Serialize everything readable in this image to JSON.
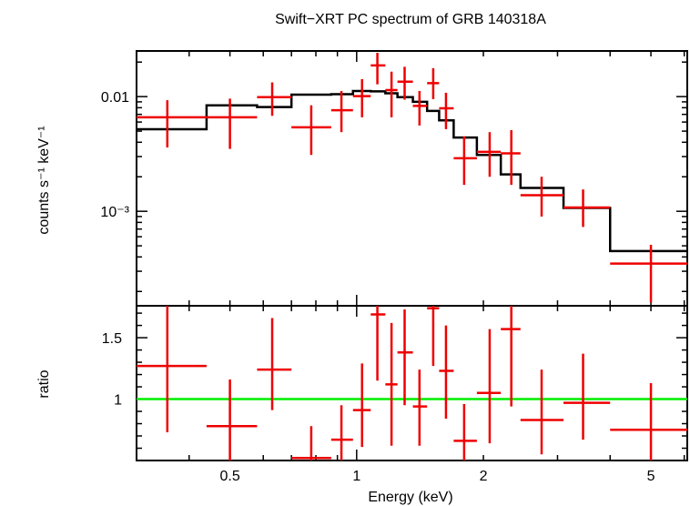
{
  "chart_data": [
    {
      "type": "scatter",
      "panel": "spectrum",
      "title": "Swift−XRT PC spectrum of GRB 140318A",
      "ylabel": "counts s⁻¹ keV⁻¹",
      "xlabel": "",
      "yscale": "log",
      "xscale": "log",
      "xlim": [
        0.3,
        6.1
      ],
      "ylim": [
        0.00015,
        0.025
      ],
      "yticks": [
        {
          "value": 0.01,
          "label": "0.01"
        },
        {
          "value": 0.001,
          "label": "10⁻³"
        }
      ],
      "data_color": "#ee0000",
      "model_color": "#000000",
      "series": [
        {
          "kind": "data",
          "points": [
            {
              "x": 0.355,
              "xlo": 0.3,
              "xhi": 0.44,
              "y": 0.0066,
              "ylo": 0.0036,
              "yhi": 0.0093
            },
            {
              "x": 0.5,
              "xlo": 0.44,
              "xhi": 0.58,
              "y": 0.0066,
              "ylo": 0.0035,
              "yhi": 0.0096
            },
            {
              "x": 0.63,
              "xlo": 0.58,
              "xhi": 0.7,
              "y": 0.0099,
              "ylo": 0.0068,
              "yhi": 0.0133
            },
            {
              "x": 0.78,
              "xlo": 0.7,
              "xhi": 0.87,
              "y": 0.0054,
              "ylo": 0.0031,
              "yhi": 0.0084
            },
            {
              "x": 0.92,
              "xlo": 0.87,
              "xhi": 0.98,
              "y": 0.0076,
              "ylo": 0.0049,
              "yhi": 0.0112
            },
            {
              "x": 1.03,
              "xlo": 0.98,
              "xhi": 1.08,
              "y": 0.0101,
              "ylo": 0.0066,
              "yhi": 0.0142
            },
            {
              "x": 1.12,
              "xlo": 1.08,
              "xhi": 1.17,
              "y": 0.0187,
              "ylo": 0.0128,
              "yhi": 0.0241
            },
            {
              "x": 1.21,
              "xlo": 1.17,
              "xhi": 1.25,
              "y": 0.0114,
              "ylo": 0.0066,
              "yhi": 0.0165
            },
            {
              "x": 1.3,
              "xlo": 1.25,
              "xhi": 1.36,
              "y": 0.0135,
              "ylo": 0.0094,
              "yhi": 0.0182
            },
            {
              "x": 1.41,
              "xlo": 1.36,
              "xhi": 1.47,
              "y": 0.0083,
              "ylo": 0.0056,
              "yhi": 0.0112
            },
            {
              "x": 1.52,
              "xlo": 1.47,
              "xhi": 1.57,
              "y": 0.0131,
              "ylo": 0.0095,
              "yhi": 0.0177
            },
            {
              "x": 1.63,
              "xlo": 1.57,
              "xhi": 1.7,
              "y": 0.0079,
              "ylo": 0.0052,
              "yhi": 0.0108
            },
            {
              "x": 1.8,
              "xlo": 1.7,
              "xhi": 1.93,
              "y": 0.0029,
              "ylo": 0.0017,
              "yhi": 0.0045
            },
            {
              "x": 2.07,
              "xlo": 1.93,
              "xhi": 2.2,
              "y": 0.0033,
              "ylo": 0.002,
              "yhi": 0.0049
            },
            {
              "x": 2.33,
              "xlo": 2.2,
              "xhi": 2.45,
              "y": 0.0032,
              "ylo": 0.0017,
              "yhi": 0.0051
            },
            {
              "x": 2.75,
              "xlo": 2.45,
              "xhi": 3.1,
              "y": 0.00138,
              "ylo": 0.0009,
              "yhi": 0.002
            },
            {
              "x": 3.45,
              "xlo": 3.1,
              "xhi": 4.0,
              "y": 0.00108,
              "ylo": 0.00073,
              "yhi": 0.00155
            },
            {
              "x": 5.0,
              "xlo": 4.0,
              "xhi": 6.1,
              "y": 0.00035,
              "ylo": 0.00016,
              "yhi": 0.00051
            }
          ]
        },
        {
          "kind": "model",
          "steps": [
            {
              "xlo": 0.3,
              "xhi": 0.44,
              "y": 0.0052
            },
            {
              "xlo": 0.44,
              "xhi": 0.58,
              "y": 0.0084
            },
            {
              "xlo": 0.58,
              "xhi": 0.7,
              "y": 0.0081
            },
            {
              "xlo": 0.7,
              "xhi": 0.87,
              "y": 0.0104
            },
            {
              "xlo": 0.87,
              "xhi": 0.98,
              "y": 0.0105
            },
            {
              "xlo": 0.98,
              "xhi": 1.08,
              "y": 0.0112
            },
            {
              "xlo": 1.08,
              "xhi": 1.17,
              "y": 0.0111
            },
            {
              "xlo": 1.17,
              "xhi": 1.25,
              "y": 0.0107
            },
            {
              "xlo": 1.25,
              "xhi": 1.36,
              "y": 0.0099
            },
            {
              "xlo": 1.36,
              "xhi": 1.47,
              "y": 0.009
            },
            {
              "xlo": 1.47,
              "xhi": 1.57,
              "y": 0.0075
            },
            {
              "xlo": 1.57,
              "xhi": 1.7,
              "y": 0.0062
            },
            {
              "xlo": 1.7,
              "xhi": 1.93,
              "y": 0.0044
            },
            {
              "xlo": 1.93,
              "xhi": 2.2,
              "y": 0.0031
            },
            {
              "xlo": 2.2,
              "xhi": 2.45,
              "y": 0.0021
            },
            {
              "xlo": 2.45,
              "xhi": 3.1,
              "y": 0.0016
            },
            {
              "xlo": 3.1,
              "xhi": 4.0,
              "y": 0.00107
            },
            {
              "xlo": 4.0,
              "xhi": 6.1,
              "y": 0.00045
            }
          ]
        }
      ]
    },
    {
      "type": "scatter",
      "panel": "ratio",
      "xlabel": "Energy (keV)",
      "ylabel": "ratio",
      "xscale": "log",
      "xlim": [
        0.3,
        6.1
      ],
      "ylim": [
        0.5,
        1.76
      ],
      "xticks": [
        {
          "value": 0.5,
          "label": "0.5"
        },
        {
          "value": 1,
          "label": "1"
        },
        {
          "value": 2,
          "label": "2"
        },
        {
          "value": 5,
          "label": "5"
        }
      ],
      "yticks": [
        {
          "value": 1,
          "label": "1"
        },
        {
          "value": 1.5,
          "label": "1.5"
        }
      ],
      "reference_line": {
        "y": 1,
        "color": "#00ee00"
      },
      "data_color": "#ee0000",
      "points": [
        {
          "x": 0.355,
          "xlo": 0.3,
          "xhi": 0.44,
          "y": 1.27,
          "ylo": 0.73,
          "yhi": 1.76
        },
        {
          "x": 0.5,
          "xlo": 0.44,
          "xhi": 0.58,
          "y": 0.78,
          "ylo": 0.5,
          "yhi": 1.16
        },
        {
          "x": 0.63,
          "xlo": 0.58,
          "xhi": 0.7,
          "y": 1.24,
          "ylo": 0.91,
          "yhi": 1.66
        },
        {
          "x": 0.78,
          "xlo": 0.7,
          "xhi": 0.87,
          "y": 0.52,
          "ylo": 0.5,
          "yhi": 0.78
        },
        {
          "x": 0.92,
          "xlo": 0.87,
          "xhi": 0.98,
          "y": 0.67,
          "ylo": 0.5,
          "yhi": 0.95
        },
        {
          "x": 1.03,
          "xlo": 0.98,
          "xhi": 1.08,
          "y": 0.91,
          "ylo": 0.61,
          "yhi": 1.29
        },
        {
          "x": 1.12,
          "xlo": 1.08,
          "xhi": 1.17,
          "y": 1.69,
          "ylo": 1.15,
          "yhi": 1.76
        },
        {
          "x": 1.21,
          "xlo": 1.17,
          "xhi": 1.25,
          "y": 1.12,
          "ylo": 0.62,
          "yhi": 1.62
        },
        {
          "x": 1.3,
          "xlo": 1.25,
          "xhi": 1.36,
          "y": 1.38,
          "ylo": 0.95,
          "yhi": 1.73
        },
        {
          "x": 1.41,
          "xlo": 1.36,
          "xhi": 1.47,
          "y": 0.94,
          "ylo": 0.62,
          "yhi": 1.24
        },
        {
          "x": 1.52,
          "xlo": 1.47,
          "xhi": 1.57,
          "y": 1.74,
          "ylo": 1.27,
          "yhi": 1.76
        },
        {
          "x": 1.63,
          "xlo": 1.57,
          "xhi": 1.7,
          "y": 1.23,
          "ylo": 0.84,
          "yhi": 1.6
        },
        {
          "x": 1.8,
          "xlo": 1.7,
          "xhi": 1.93,
          "y": 0.66,
          "ylo": 0.5,
          "yhi": 0.96
        },
        {
          "x": 2.07,
          "xlo": 1.93,
          "xhi": 2.2,
          "y": 1.05,
          "ylo": 0.64,
          "yhi": 1.57
        },
        {
          "x": 2.33,
          "xlo": 2.2,
          "xhi": 2.45,
          "y": 1.57,
          "ylo": 0.94,
          "yhi": 1.76
        },
        {
          "x": 2.75,
          "xlo": 2.45,
          "xhi": 3.1,
          "y": 0.83,
          "ylo": 0.55,
          "yhi": 1.24
        },
        {
          "x": 3.45,
          "xlo": 3.1,
          "xhi": 4.0,
          "y": 0.97,
          "ylo": 0.67,
          "yhi": 1.37
        },
        {
          "x": 5.0,
          "xlo": 4.0,
          "xhi": 6.1,
          "y": 0.75,
          "ylo": 0.5,
          "yhi": 1.13
        }
      ]
    }
  ]
}
